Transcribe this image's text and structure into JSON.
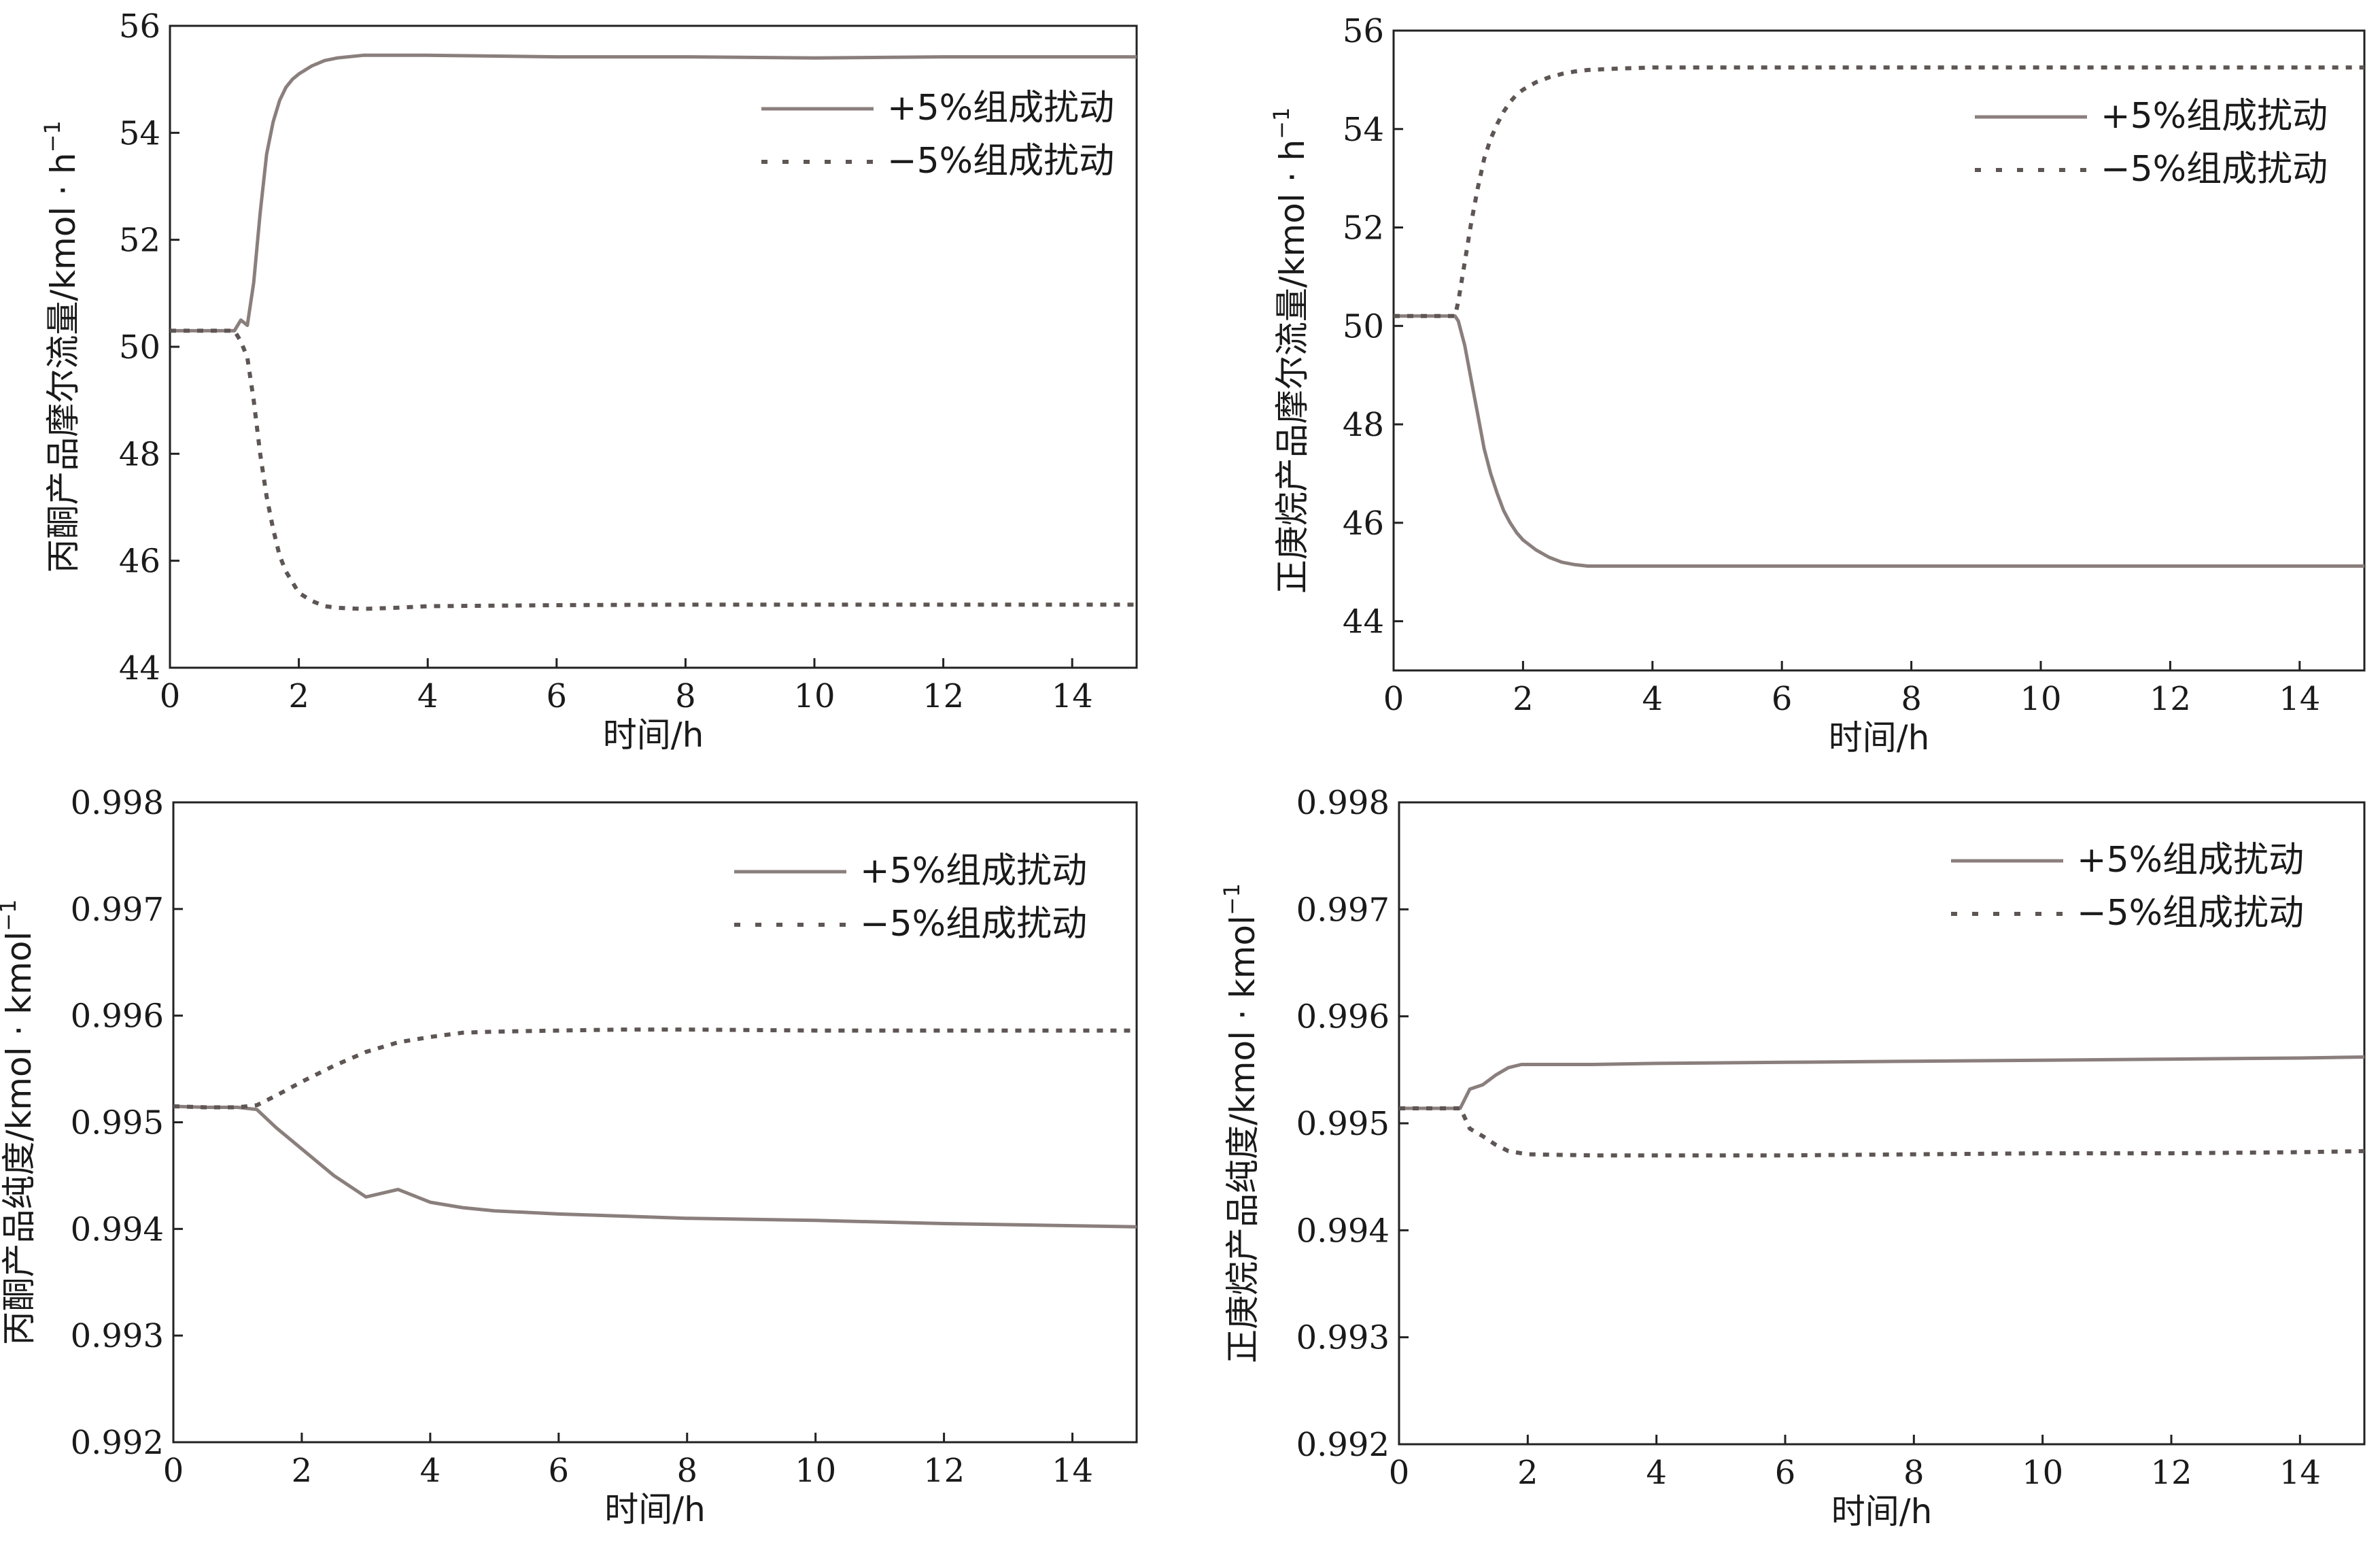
{
  "chart_data": [
    {
      "type": "line",
      "xlabel": "时间/h",
      "ylabel": "丙酮产品摩尔流量/kmol · h",
      "ylabel_sup": "−1",
      "xlim": [
        0,
        15
      ],
      "ylim": [
        44,
        56
      ],
      "xticks": [
        0,
        2,
        4,
        6,
        8,
        10,
        12,
        14
      ],
      "yticks": [
        44,
        46,
        48,
        50,
        52,
        54,
        56
      ],
      "ytick_decimals": 0,
      "grid": false,
      "legend_position": "top-right",
      "series": [
        {
          "name": "+5%组成扰动",
          "style": "solid",
          "color": "#8a7f7d",
          "x": [
            0,
            0.5,
            1.0,
            1.1,
            1.2,
            1.3,
            1.4,
            1.5,
            1.6,
            1.7,
            1.8,
            1.9,
            2.0,
            2.2,
            2.4,
            2.6,
            3.0,
            3.5,
            4.0,
            6.0,
            8.0,
            10.0,
            12.0,
            15.0
          ],
          "y": [
            50.3,
            50.3,
            50.3,
            50.5,
            50.4,
            51.2,
            52.5,
            53.6,
            54.2,
            54.6,
            54.85,
            55.0,
            55.1,
            55.25,
            55.35,
            55.4,
            55.45,
            55.45,
            55.45,
            55.42,
            55.42,
            55.4,
            55.42,
            55.42
          ]
        },
        {
          "name": "−5%组成扰动",
          "style": "dotted",
          "color": "#5e5654",
          "x": [
            0,
            0.5,
            1.0,
            1.1,
            1.2,
            1.3,
            1.4,
            1.5,
            1.6,
            1.7,
            1.8,
            1.9,
            2.0,
            2.2,
            2.4,
            2.6,
            3.0,
            3.5,
            4.0,
            6.0,
            8.0,
            10.0,
            12.0,
            15.0
          ],
          "y": [
            50.3,
            50.3,
            50.3,
            50.1,
            49.8,
            49.0,
            48.0,
            47.2,
            46.6,
            46.1,
            45.8,
            45.6,
            45.4,
            45.25,
            45.15,
            45.12,
            45.1,
            45.12,
            45.15,
            45.17,
            45.18,
            45.18,
            45.18,
            45.18
          ]
        }
      ]
    },
    {
      "type": "line",
      "xlabel": "时间/h",
      "ylabel": "正庚烷产品摩尔流量/kmol · h",
      "ylabel_sup": "−1",
      "xlim": [
        0,
        15
      ],
      "ylim": [
        43,
        56
      ],
      "xticks": [
        0,
        2,
        4,
        6,
        8,
        10,
        12,
        14
      ],
      "yticks": [
        44,
        46,
        48,
        50,
        52,
        54,
        56
      ],
      "ytick_decimals": 0,
      "grid": false,
      "legend_position": "top-right",
      "series": [
        {
          "name": "+5%组成扰动",
          "style": "solid",
          "color": "#8a7f7d",
          "x": [
            0,
            0.5,
            0.95,
            1.0,
            1.1,
            1.2,
            1.3,
            1.4,
            1.5,
            1.6,
            1.7,
            1.8,
            1.9,
            2.0,
            2.2,
            2.4,
            2.6,
            2.8,
            3.0,
            3.5,
            4.0,
            6.0,
            10.0,
            15.0
          ],
          "y": [
            50.2,
            50.2,
            50.2,
            50.1,
            49.6,
            48.9,
            48.2,
            47.5,
            47.0,
            46.6,
            46.25,
            46.0,
            45.8,
            45.65,
            45.45,
            45.3,
            45.2,
            45.15,
            45.12,
            45.12,
            45.12,
            45.12,
            45.12,
            45.12
          ]
        },
        {
          "name": "−5%组成扰动",
          "style": "dotted",
          "color": "#5e5654",
          "x": [
            0,
            0.5,
            0.95,
            1.0,
            1.1,
            1.2,
            1.3,
            1.4,
            1.5,
            1.6,
            1.7,
            1.8,
            1.9,
            2.0,
            2.2,
            2.4,
            2.6,
            2.8,
            3.0,
            3.5,
            4.0,
            6.0,
            10.0,
            15.0
          ],
          "y": [
            50.2,
            50.2,
            50.2,
            50.5,
            51.3,
            52.1,
            52.8,
            53.4,
            53.8,
            54.1,
            54.35,
            54.55,
            54.7,
            54.8,
            54.95,
            55.05,
            55.12,
            55.17,
            55.2,
            55.23,
            55.25,
            55.25,
            55.25,
            55.25
          ]
        }
      ]
    },
    {
      "type": "line",
      "xlabel": "时间/h",
      "ylabel": "丙酮产品纯度/kmol · kmol",
      "ylabel_sup": "−1",
      "xlim": [
        0,
        15
      ],
      "ylim": [
        0.992,
        0.998
      ],
      "xticks": [
        0,
        2,
        4,
        6,
        8,
        10,
        12,
        14
      ],
      "yticks": [
        0.992,
        0.993,
        0.994,
        0.995,
        0.996,
        0.997,
        0.998
      ],
      "ytick_decimals": 3,
      "grid": false,
      "legend_position": "top-right",
      "series": [
        {
          "name": "+5%组成扰动",
          "style": "solid",
          "color": "#8a7f7d",
          "x": [
            0,
            0.5,
            1.0,
            1.3,
            1.6,
            2.0,
            2.5,
            3.0,
            3.5,
            4.0,
            4.5,
            5.0,
            6.0,
            7.0,
            8.0,
            10.0,
            12.0,
            14.0,
            15.0
          ],
          "y": [
            0.99515,
            0.99514,
            0.99514,
            0.99512,
            0.99495,
            0.99475,
            0.9945,
            0.9943,
            0.99437,
            0.99425,
            0.9942,
            0.99417,
            0.99414,
            0.99412,
            0.9941,
            0.99408,
            0.99405,
            0.99403,
            0.99402
          ]
        },
        {
          "name": "−5%组成扰动",
          "style": "dotted",
          "color": "#5e5654",
          "x": [
            0,
            0.5,
            1.0,
            1.3,
            1.6,
            2.0,
            2.5,
            3.0,
            3.5,
            4.0,
            4.5,
            5.0,
            6.0,
            7.0,
            8.0,
            10.0,
            12.0,
            14.0,
            15.0
          ],
          "y": [
            0.99515,
            0.99514,
            0.99514,
            0.99516,
            0.99525,
            0.99538,
            0.99553,
            0.99566,
            0.99575,
            0.9958,
            0.99584,
            0.99585,
            0.99586,
            0.99587,
            0.99587,
            0.99586,
            0.99586,
            0.99586,
            0.99586
          ]
        }
      ]
    },
    {
      "type": "line",
      "xlabel": "时间/h",
      "ylabel": "正庚烷产品纯度/kmol · kmol",
      "ylabel_sup": "−1",
      "xlim": [
        0,
        15
      ],
      "ylim": [
        0.992,
        0.998
      ],
      "xticks": [
        0,
        2,
        4,
        6,
        8,
        10,
        12,
        14
      ],
      "yticks": [
        0.992,
        0.993,
        0.994,
        0.995,
        0.996,
        0.997,
        0.998
      ],
      "ytick_decimals": 3,
      "grid": false,
      "legend_position": "top-right",
      "series": [
        {
          "name": "+5%组成扰动",
          "style": "solid",
          "color": "#8a7f7d",
          "x": [
            0,
            0.5,
            0.95,
            1.0,
            1.1,
            1.3,
            1.5,
            1.7,
            1.9,
            2.0,
            3.0,
            4.0,
            6.0,
            8.0,
            10.0,
            12.0,
            14.0,
            15.0
          ],
          "y": [
            0.99514,
            0.99514,
            0.99514,
            0.9952,
            0.99532,
            0.99536,
            0.99545,
            0.99552,
            0.99555,
            0.99555,
            0.99555,
            0.99556,
            0.99557,
            0.99558,
            0.99559,
            0.9956,
            0.99561,
            0.99562
          ]
        },
        {
          "name": "−5%组成扰动",
          "style": "dotted",
          "color": "#5e5654",
          "x": [
            0,
            0.5,
            0.95,
            1.0,
            1.1,
            1.3,
            1.5,
            1.7,
            1.9,
            2.0,
            3.0,
            4.0,
            6.0,
            8.0,
            10.0,
            12.0,
            14.0,
            15.0
          ],
          "y": [
            0.99514,
            0.99514,
            0.99514,
            0.99508,
            0.99495,
            0.99488,
            0.9948,
            0.99474,
            0.99472,
            0.99471,
            0.9947,
            0.9947,
            0.9947,
            0.99471,
            0.99472,
            0.99472,
            0.99473,
            0.99474
          ]
        }
      ]
    }
  ]
}
